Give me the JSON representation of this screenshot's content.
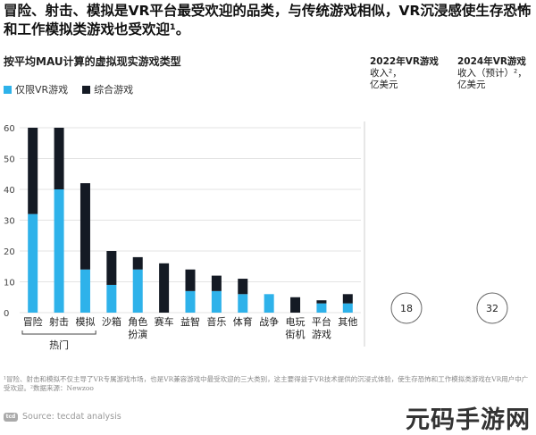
{
  "headline": "冒险、射击、模拟是VR平台最受欢迎的品类，与传统游戏相似，VR沉浸感使生存恐怖和工作模拟类游戏也受欢迎¹。",
  "subtitle": "按平均MAU计算的虚拟现实游戏类型",
  "legend": [
    {
      "label": "仅限VR游戏",
      "color": "#2eb2ea"
    },
    {
      "label": "综合游戏",
      "color": "#141a24"
    }
  ],
  "col_2022": {
    "line1": "2022年VR游戏",
    "line2": "收入²，",
    "line3": "亿美元",
    "value": "18"
  },
  "col_2024": {
    "line1": "2024年VR游戏",
    "line2": "收入（预计）²，",
    "line3": "亿美元",
    "value": "32"
  },
  "chart_data": {
    "type": "bar",
    "stacked": true,
    "categories": [
      "冒险",
      "射击",
      "模拟",
      "沙箱",
      "角色扮演",
      "赛车",
      "益智",
      "音乐",
      "体育",
      "战争",
      "电玩街机",
      "平台游戏",
      "其他"
    ],
    "category_lines": [
      [
        "冒险"
      ],
      [
        "射击"
      ],
      [
        "模拟"
      ],
      [
        "沙箱"
      ],
      [
        "角色",
        "扮演"
      ],
      [
        "赛车"
      ],
      [
        "益智"
      ],
      [
        "音乐"
      ],
      [
        "体育"
      ],
      [
        "战争"
      ],
      [
        "电玩",
        "街机"
      ],
      [
        "平台",
        "游戏"
      ],
      [
        "其他"
      ]
    ],
    "series": [
      {
        "name": "仅限VR游戏",
        "color": "#2eb2ea",
        "values": [
          32,
          40,
          14,
          9,
          14,
          0,
          7,
          7,
          6,
          6,
          0,
          3,
          3
        ]
      },
      {
        "name": "综合游戏",
        "color": "#141a24",
        "values": [
          28,
          20,
          28,
          11,
          4,
          16,
          7,
          5,
          5,
          0,
          5,
          1,
          3
        ]
      }
    ],
    "yticks": [
      0,
      10,
      20,
      30,
      40,
      50,
      60
    ],
    "ylim": [
      0,
      60
    ],
    "grid": true,
    "bracket_label": "热门",
    "bracket_categories": [
      "冒险",
      "射击",
      "模拟"
    ]
  },
  "footnote": "¹冒险、射击和模拟不仅主导了VR专属游戏市场，也是VR兼容游戏中最受欢迎的三大类别，这主要得益于VR技术提供的沉浸式体验，使生存恐怖和工作模拟类游戏在VR用户中广受欢迎。²数据来源：Newzoo",
  "source": {
    "logo": "tcd",
    "text": "Source: tecdat analysis"
  },
  "watermark": "元码手游网"
}
